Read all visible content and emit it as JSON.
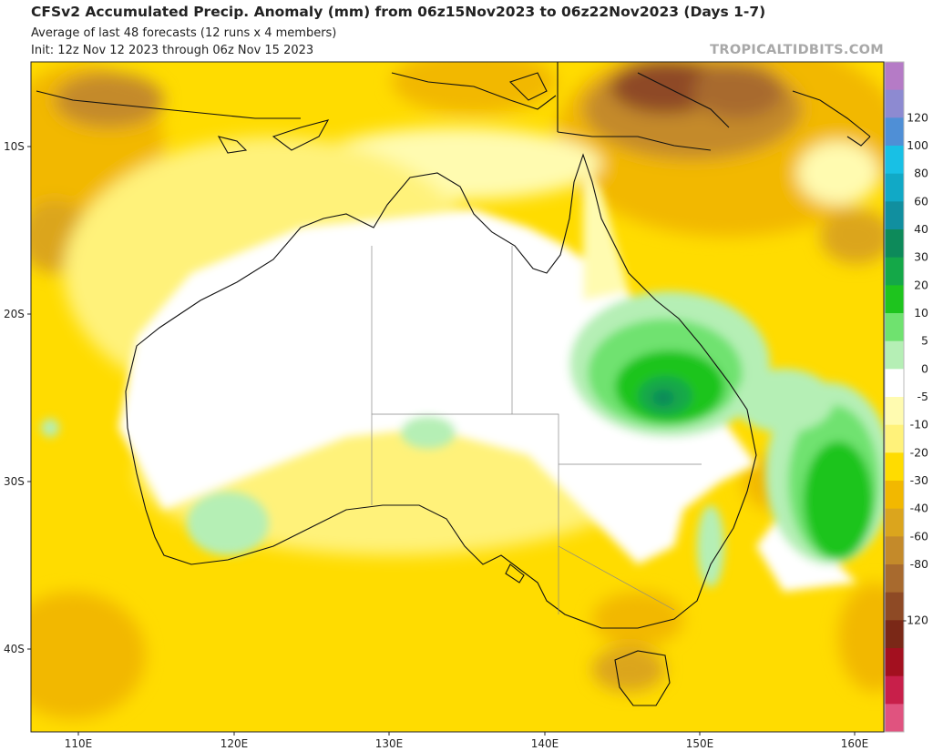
{
  "header": {
    "title": "CFSv2 Accumulated Precip. Anomaly (mm) from 06z15Nov2023 to 06z22Nov2023 (Days 1-7)",
    "subtitle1": "Average of last 48 forecasts (12 runs x 4 members)",
    "subtitle2": "Init: 12z Nov 12 2023 through 06z Nov 15 2023",
    "brand": "TROPICALTIDBITS.COM"
  },
  "map": {
    "lat_labels": [
      "10S",
      "20S",
      "30S",
      "40S"
    ],
    "lon_labels": [
      "110E",
      "120E",
      "130E",
      "140E",
      "150E",
      "160E"
    ]
  },
  "colorbar": {
    "labels": [
      "120",
      "100",
      "80",
      "60",
      "40",
      "30",
      "20",
      "10",
      "5",
      "0",
      "-5",
      "-10",
      "-20",
      "-30",
      "-40",
      "-60",
      "-80",
      "-120"
    ],
    "colors": [
      "#b57bc6",
      "#8d8ad1",
      "#4f8fd6",
      "#18c0e5",
      "#11a9c6",
      "#118f9f",
      "#0d8a5a",
      "#14a848",
      "#1ec41e",
      "#6fe26f",
      "#b5efb5",
      "#ffffff",
      "#fffbb0",
      "#fff27a",
      "#ffdc00",
      "#f2b800",
      "#dba51d",
      "#c48a2a",
      "#a86a2e",
      "#8e4a25",
      "#7a2817",
      "#a3101f",
      "#c81f4a",
      "#e0537f"
    ]
  }
}
